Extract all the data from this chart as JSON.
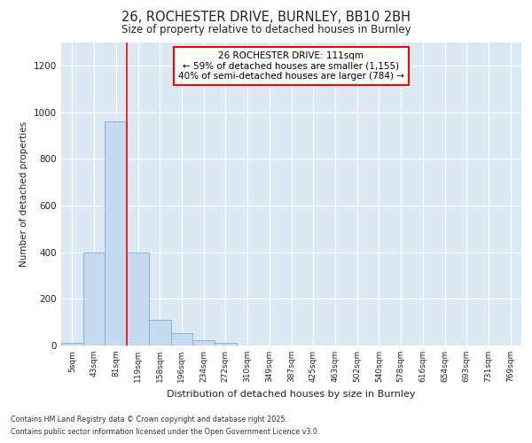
{
  "title1": "26, ROCHESTER DRIVE, BURNLEY, BB10 2BH",
  "title2": "Size of property relative to detached houses in Burnley",
  "xlabel": "Distribution of detached houses by size in Burnley",
  "ylabel": "Number of detached properties",
  "bin_labels": [
    "5sqm",
    "43sqm",
    "81sqm",
    "119sqm",
    "158sqm",
    "196sqm",
    "234sqm",
    "272sqm",
    "310sqm",
    "349sqm",
    "387sqm",
    "425sqm",
    "463sqm",
    "502sqm",
    "540sqm",
    "578sqm",
    "616sqm",
    "654sqm",
    "693sqm",
    "731sqm",
    "769sqm"
  ],
  "bar_values": [
    10,
    400,
    960,
    400,
    110,
    52,
    22,
    10,
    0,
    0,
    0,
    0,
    0,
    0,
    0,
    0,
    0,
    0,
    0,
    0,
    0
  ],
  "bar_color": "#c5d9f0",
  "bar_edge_color": "#7aadd4",
  "red_line_x": 3.0,
  "annotation_title": "26 ROCHESTER DRIVE: 111sqm",
  "annotation_line1": "← 59% of detached houses are smaller (1,155)",
  "annotation_line2": "40% of semi-detached houses are larger (784) →",
  "footnote1": "Contains HM Land Registry data © Crown copyright and database right 2025.",
  "footnote2": "Contains public sector information licensed under the Open Government Licence v3.0.",
  "ylim": [
    0,
    1300
  ],
  "yticks": [
    0,
    200,
    400,
    600,
    800,
    1000,
    1200
  ],
  "fig_bg_color": "#ffffff",
  "plot_bg_color": "#dce9f5"
}
